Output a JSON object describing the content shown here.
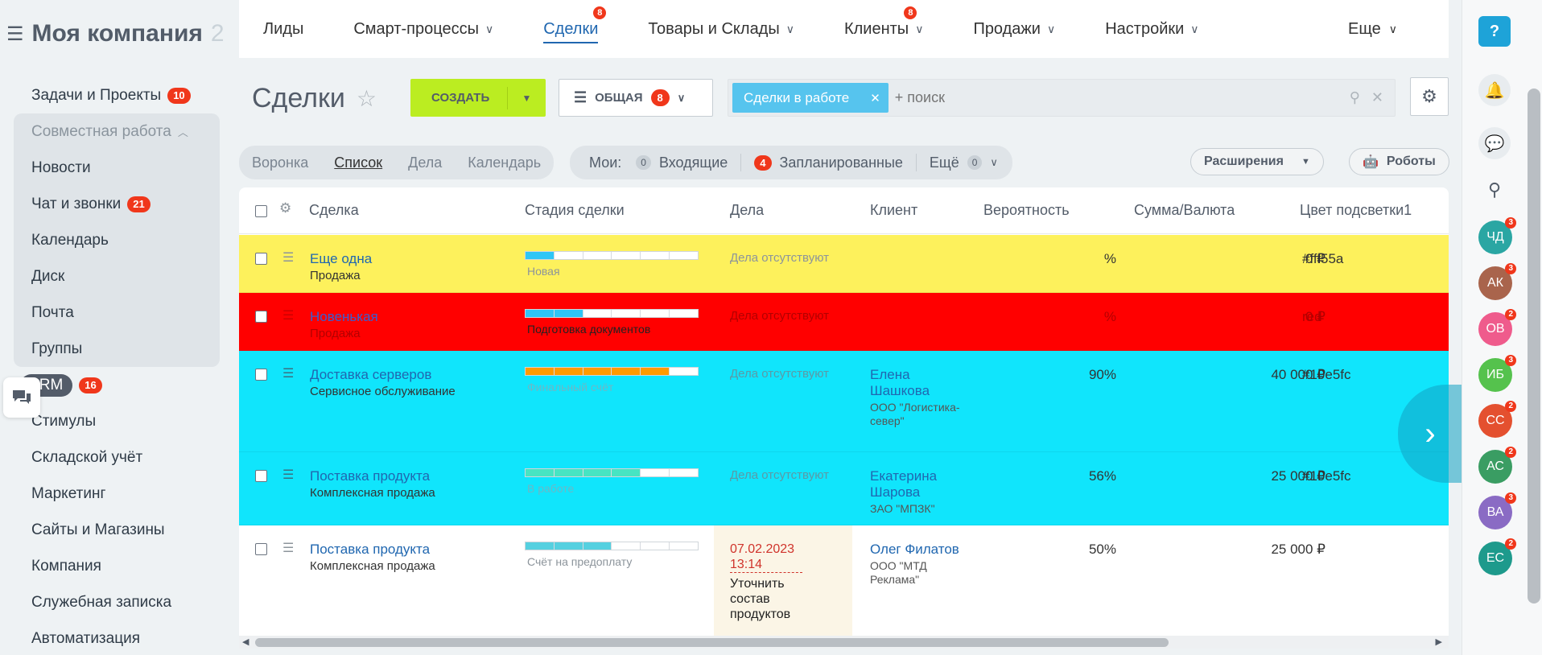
{
  "sidebar": {
    "company": "Моя компания",
    "company_extra": "2",
    "items": [
      {
        "label": "Задачи и Проекты",
        "count": "10"
      },
      {
        "label": "Совместная работа"
      },
      {
        "label": "Новости"
      },
      {
        "label": "Чат и звонки",
        "count": "21"
      },
      {
        "label": "Календарь"
      },
      {
        "label": "Диск"
      },
      {
        "label": "Почта"
      },
      {
        "label": "Группы"
      },
      {
        "label": "CRM",
        "count": "16"
      },
      {
        "label": "Стимулы"
      },
      {
        "label": "Складской учёт"
      },
      {
        "label": "Маркетинг"
      },
      {
        "label": "Сайты и Магазины"
      },
      {
        "label": "Компания"
      },
      {
        "label": "Служебная записка"
      },
      {
        "label": "Автоматизация"
      }
    ]
  },
  "topnav": {
    "tabs": [
      {
        "label": "Лиды"
      },
      {
        "label": "Смарт-процессы"
      },
      {
        "label": "Сделки",
        "badge": "8"
      },
      {
        "label": "Товары и Склады"
      },
      {
        "label": "Клиенты",
        "badge": "8"
      },
      {
        "label": "Продажи"
      },
      {
        "label": "Настройки"
      }
    ],
    "more": "Еще"
  },
  "toolbar": {
    "title": "Сделки",
    "create": "СОЗДАТЬ",
    "filter_label": "ОБЩАЯ",
    "filter_count": "8",
    "chip": "Сделки в работе",
    "search_placeholder": "+ поиск"
  },
  "views": [
    "Воронка",
    "Список",
    "Дела",
    "Календарь"
  ],
  "counters": {
    "mine": "Мои:",
    "incoming_count": "0",
    "incoming": "Входящие",
    "planned_count": "4",
    "planned": "Запланированные",
    "more": "Ещё",
    "more_count": "0"
  },
  "buttons": {
    "extensions": "Расширения",
    "robots": "Роботы"
  },
  "grid": {
    "headers": [
      "Сделка",
      "Стадия сделки",
      "Дела",
      "Клиент",
      "Вероятность",
      "Сумма/Валюта",
      "Цвет подсветки1"
    ],
    "rows": [
      {
        "title": "Еще одна",
        "sub": "Продажа",
        "stage": "Новая",
        "acts": "Дела отсутствуют",
        "client": "",
        "client_sub": "",
        "prob": "%",
        "sum": "0 ₽",
        "color": "#fff55a",
        "bg": "#fdf15c"
      },
      {
        "title": "Новенькая",
        "sub": "Продажа",
        "stage": "Подготовка документов",
        "acts": "Дела отсутствуют",
        "client": "",
        "client_sub": "",
        "prob": "%",
        "sum": "0 ₽",
        "color": "red",
        "bg": "#ff0000"
      },
      {
        "title": "Доставка серверов",
        "sub": "Сервисное обслуживание",
        "stage": "Финальный счёт",
        "acts": "Дела отсутствуют",
        "client": "Елена Шашкова",
        "client_sub": "ООО \"Логистика-север\"",
        "prob": "90%",
        "sum": "40 000 ₽",
        "color": "#10e5fc",
        "bg": "#10e5fc"
      },
      {
        "title": "Поставка продукта",
        "sub": "Комплексная продажа",
        "stage": "В работе",
        "acts": "Дела отсутствуют",
        "client": "Екатерина Шарова",
        "client_sub": "ЗАО \"МПЗК\"",
        "prob": "56%",
        "sum": "25 000 ₽",
        "color": "#10e5fc",
        "bg": "#10e5fc"
      },
      {
        "title": "Поставка продукта",
        "sub": "Комплексная продажа",
        "stage": "Счёт на предоплату",
        "acts_date": "07.02.2023 13:14",
        "acts_text": "Уточнить состав продуктов",
        "client": "Олег Филатов",
        "client_sub": "ООО \"МТД Реклама\"",
        "prob": "50%",
        "sum": "25 000 ₽",
        "color": "",
        "bg": "#ffffff"
      }
    ]
  },
  "avatars": [
    {
      "initials": "ЧД",
      "badge": "3",
      "color": "#2aa6a3"
    },
    {
      "initials": "АК",
      "badge": "3",
      "color": "#a9644c"
    },
    {
      "initials": "ОВ",
      "badge": "2",
      "color": "#ef5b8c"
    },
    {
      "initials": "ИБ",
      "badge": "3",
      "color": "#55c24d"
    },
    {
      "initials": "СС",
      "badge": "2",
      "color": "#e4502f"
    },
    {
      "initials": "АС",
      "badge": "2",
      "color": "#3a9d63"
    },
    {
      "initials": "ВА",
      "badge": "3",
      "color": "#8a6bc4"
    },
    {
      "initials": "ЕС",
      "badge": "2",
      "color": "#1e9a8c"
    }
  ]
}
